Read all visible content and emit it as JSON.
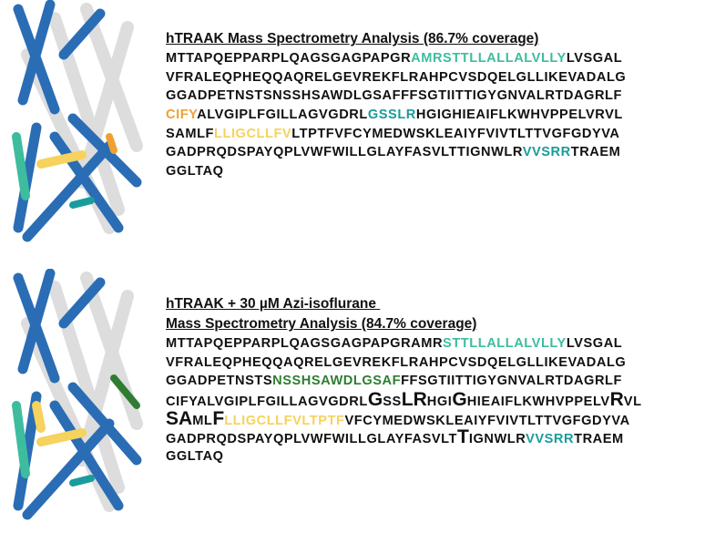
{
  "panels": [
    {
      "title_lines": [
        "hTRAAK Mass Spectrometry Analysis (86.7% coverage)"
      ],
      "lines": [
        [
          {
            "text": "MTTAPQEPPARPLQAGSGAGPAPGR"
          },
          {
            "text": "AMRSTTLLALLALVLLY",
            "color": "#3dbd9e"
          },
          {
            "text": "LVSGAL"
          }
        ],
        [
          {
            "text": "VFRALEQPHEQQAQRELGEVREKFLRAHPCVSDQELGLLIKEVADALG"
          }
        ],
        [
          {
            "text": "GGADPETNSTSNSSHSAWDLGSAFFFSGTIITTIGYGNVALRTDAGRLF"
          }
        ],
        [
          {
            "text": "CIFY",
            "color": "#f0a030"
          },
          {
            "text": "ALVGIPLFGILLAGVGDRL"
          },
          {
            "text": "GSSLR",
            "color": "#1a9c9c"
          },
          {
            "text": "HGIGHIEAIFLKWHVPPELVRVL"
          }
        ],
        [
          {
            "text": "SAMLF"
          },
          {
            "text": "LLIGCLLFV",
            "color": "#f6d25e"
          },
          {
            "text": "LTPTFVFCYMEDWSKLEAIYFVIVTLTTVGFGDYVA"
          }
        ],
        [
          {
            "text": "GADPRQDSPAYQPLVWFWILLGLAYFASVLTTIGNWLR"
          },
          {
            "text": "VVSRR",
            "color": "#1a9c9c"
          },
          {
            "text": "TRAEM"
          }
        ],
        [
          {
            "text": "GGLTAQ"
          }
        ]
      ]
    },
    {
      "title_lines": [
        "hTRAAK + 30 µM Azi-isoflurane ",
        "Mass Spectrometry Analysis (84.7% coverage)"
      ],
      "lines": [
        [
          {
            "text": "MTTAPQEPPARPLQAGSGAGPAPGRAMR"
          },
          {
            "text": "STTLLALLALVLLY",
            "color": "#3dbd9e"
          },
          {
            "text": "LVSGAL"
          }
        ],
        [
          {
            "text": "VFRALEQPHEQQAQRELGEVREKFLRAHPCVSDQELGLLIKEVADALG"
          }
        ],
        [
          {
            "text": "GGADPETNSTS"
          },
          {
            "text": "NSSHSAWDLGSAF",
            "color": "#2e7d32"
          },
          {
            "text": "FFSGTIITTIGYGNVALRTDAGRLF"
          }
        ],
        [
          {
            "text": "CIFYALVGIPLFGILLAGVGDRL"
          },
          {
            "text": "G",
            "large": true
          },
          {
            "text": "SS"
          },
          {
            "text": "LR",
            "large": true
          },
          {
            "text": "HGI"
          },
          {
            "text": "G",
            "large": true
          },
          {
            "text": "HIEAIFLKWHVPPELV"
          },
          {
            "text": "R",
            "large": true
          },
          {
            "text": "VL"
          }
        ],
        [
          {
            "text": "SA",
            "large": true
          },
          {
            "text": "ML"
          },
          {
            "text": "F",
            "large": true
          },
          {
            "text": "LLIGCLLFVLTPTF",
            "color": "#f6d25e"
          },
          {
            "text": "VFCYMEDWSKLEAIYFVIVTLTTVGFGDYVA"
          }
        ],
        [
          {
            "text": "GADPRQDSPAYQPLVWFWILLGLAYFASVLT"
          },
          {
            "text": "T",
            "large": true
          },
          {
            "text": "IGNWLR"
          },
          {
            "text": "VVSRR",
            "color": "#1a9c9c"
          },
          {
            "text": "TRAEM"
          }
        ],
        [
          {
            "text": "GGLTAQ"
          }
        ]
      ]
    }
  ]
}
